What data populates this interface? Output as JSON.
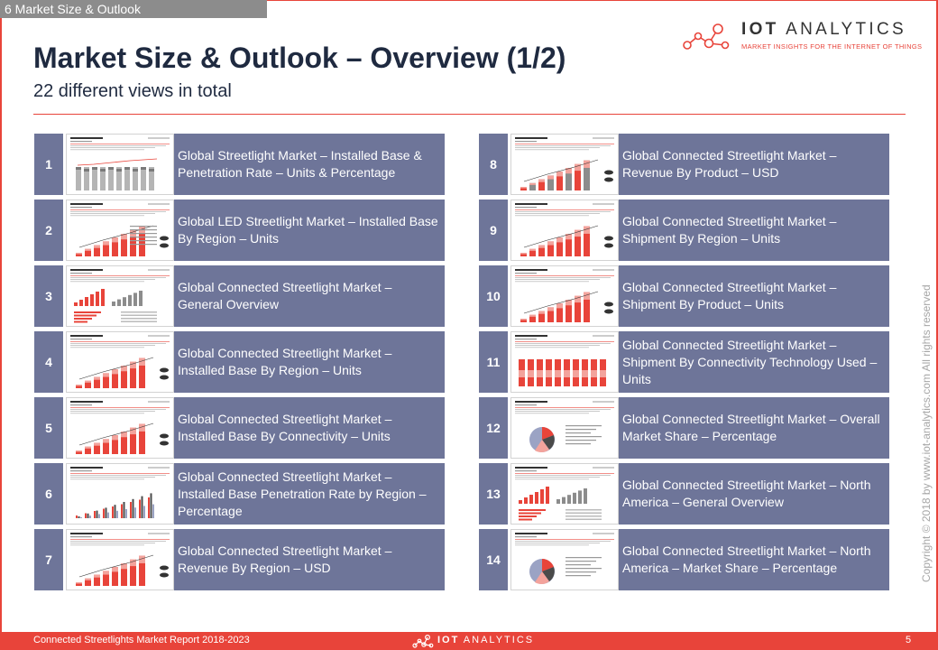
{
  "section_tab": "6 Market Size & Outlook",
  "logo": {
    "brand_bold": "IOT",
    "brand_rest": "ANALYTICS",
    "tagline": "MARKET INSIGHTS FOR THE INTERNET OF THINGS"
  },
  "title": "Market Size & Outlook – Overview (1/2)",
  "subtitle": "22 different views in total",
  "colors": {
    "accent": "#e8443a",
    "box": "#6e7599",
    "title": "#1f2a40"
  },
  "views": [
    {
      "number": "1",
      "label": "Global Streetlight Market – Installed Base & Penetration Rate – Units & Percentage",
      "thumbnail": "grey-bars"
    },
    {
      "number": "2",
      "label": "Global LED Streetlight Market – Installed Base By Region – Units",
      "thumbnail": "red-bars-table"
    },
    {
      "number": "3",
      "label": "Global Connected Streetlight Market – General Overview",
      "thumbnail": "overview"
    },
    {
      "number": "4",
      "label": "Global Connected Streetlight Market – Installed Base By Region – Units",
      "thumbnail": "red-bars"
    },
    {
      "number": "5",
      "label": "Global Connected Streetlight Market – Installed Base By Connectivity – Units",
      "thumbnail": "red-bars"
    },
    {
      "number": "6",
      "label": "Global Connected Streetlight Market – Installed Base Penetration Rate by Region – Percentage",
      "thumbnail": "grouped-bars"
    },
    {
      "number": "7",
      "label": "Global Connected Streetlight Market – Revenue By Region – USD",
      "thumbnail": "red-bars"
    },
    {
      "number": "8",
      "label": "Global Connected Streetlight Market – Revenue By Product  – USD",
      "thumbnail": "mixed-bars"
    },
    {
      "number": "9",
      "label": "Global Connected Streetlight Market – Shipment  By Region – Units",
      "thumbnail": "red-bars"
    },
    {
      "number": "10",
      "label": "Global Connected Streetlight Market – Shipment  By Product  – Units",
      "thumbnail": "red-bars"
    },
    {
      "number": "11",
      "label": "Global Connected Streetlight Market – Shipment  By Connectivity Technology Used – Units",
      "thumbnail": "stacked-100"
    },
    {
      "number": "12",
      "label": "Global Connected Streetlight Market – Overall Market Share – Percentage",
      "thumbnail": "pie"
    },
    {
      "number": "13",
      "label": "Global Connected Streetlight Market – North America – General Overview",
      "thumbnail": "overview"
    },
    {
      "number": "14",
      "label": "Global Connected Streetlight Market – North America – Market Share –  Percentage",
      "thumbnail": "pie"
    }
  ],
  "copyright": "Copyright © 2018 by www.iot-analytics.com All rights reserved",
  "footer": {
    "report_name": "Connected Streetlights Market Report 2018-2023",
    "brand_bold": "IOT",
    "brand_rest": "ANALYTICS",
    "page_number": "5"
  }
}
